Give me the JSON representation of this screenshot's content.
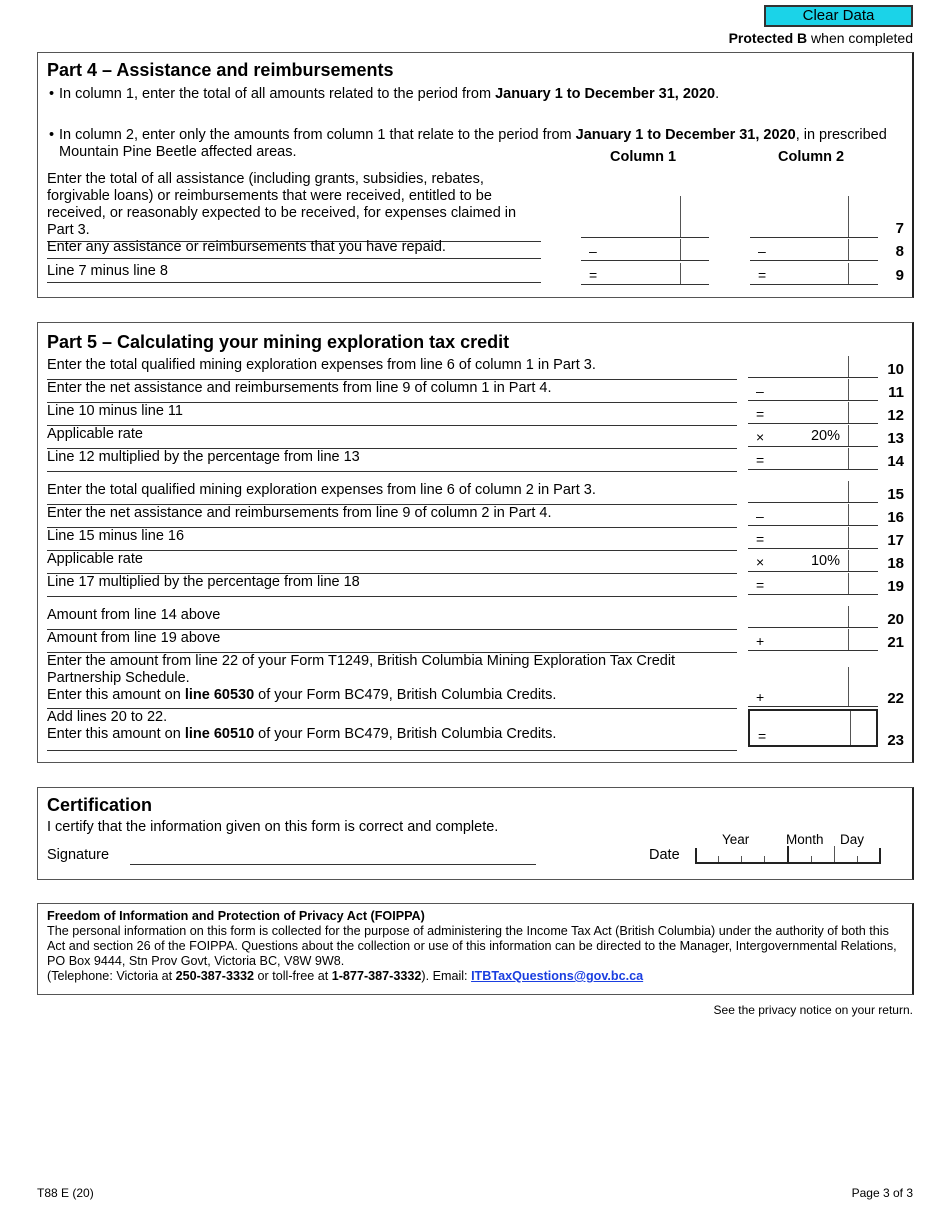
{
  "header": {
    "clear_button": "Clear Data",
    "protected_bold": "Protected B",
    "protected_rest": " when completed"
  },
  "part4": {
    "title": "Part 4 – Assistance and reimbursements",
    "bullet1_pre": "In column 1, enter the total of all amounts related to the period from ",
    "bullet1_bold": "January 1 to December 31, 2020",
    "bullet1_post": ".",
    "bullet2_pre": "In column 2, enter only the amounts from column 1 that relate to the period from ",
    "bullet2_bold": "January 1 to December 31, 2020",
    "bullet2_post": ", in prescribed Mountain Pine Beetle affected areas.",
    "col1": "Column 1",
    "col2": "Column 2",
    "rows": [
      {
        "text": "Enter the total of all assistance (including grants, subsidies, rebates, forgivable loans) or reimbursements that were received, entitled to be received, or reasonably expected to be received, for expenses claimed in Part 3.",
        "sym": "",
        "line": "7"
      },
      {
        "text": "Enter any assistance or reimbursements that you have repaid.",
        "sym": "–",
        "line": "8"
      },
      {
        "text": "Line 7 minus line 8",
        "sym": "=",
        "line": "9"
      }
    ]
  },
  "part5": {
    "title": "Part 5 – Calculating your mining exploration tax credit",
    "rows": [
      {
        "text": "Enter the total qualified mining exploration expenses from line 6 of column 1 in Part 3.",
        "sym": "",
        "line": "10"
      },
      {
        "text": "Enter the net assistance and reimbursements from line 9 of column 1 in Part 4.",
        "sym": "–",
        "line": "11"
      },
      {
        "text": "Line 10 minus line 11",
        "sym": "=",
        "line": "12"
      },
      {
        "text": "Applicable rate",
        "sym": "×",
        "rate": "20%",
        "line": "13"
      },
      {
        "text": "Line 12 multiplied by the percentage from line 13",
        "sym": "=",
        "line": "14"
      },
      {
        "text": "Enter the total qualified mining exploration expenses from line 6 of column 2 in Part 3.",
        "sym": "",
        "line": "15",
        "gap": true
      },
      {
        "text": "Enter the net assistance and reimbursements from line 9 of column 2 in Part 4.",
        "sym": "–",
        "line": "16"
      },
      {
        "text": "Line 15 minus line 16",
        "sym": "=",
        "line": "17"
      },
      {
        "text": "Applicable rate",
        "sym": "×",
        "rate": "10%",
        "line": "18"
      },
      {
        "text": "Line 17 multiplied by the percentage from line 18",
        "sym": "=",
        "line": "19"
      },
      {
        "text": "Amount from line 14 above",
        "sym": "",
        "line": "20",
        "gap": true
      },
      {
        "text": "Amount from line 19 above",
        "sym": "+",
        "line": "21"
      },
      {
        "text": "Enter the amount from line 22 of your Form T1249, British Columbia Mining Exploration Tax Credit Partnership Schedule.",
        "text2_pre": "Enter this amount on ",
        "text2_bold": "line 60530",
        "text2_post": " of your Form BC479, British Columbia Credits.",
        "sym": "+",
        "line": "22"
      },
      {
        "text": "Add lines 20 to 22.",
        "text2_pre": "Enter this amount on ",
        "text2_bold": "line 60510",
        "text2_post": " of your Form BC479, British Columbia Credits.",
        "sym": "=",
        "line": "23",
        "boxed": true
      }
    ]
  },
  "cert": {
    "title": "Certification",
    "statement": "I certify that the information given on this form is correct and complete.",
    "signature": "Signature",
    "date": "Date",
    "year": "Year",
    "month": "Month",
    "day": "Day"
  },
  "foippa": {
    "title": "Freedom of Information and Protection of Privacy Act (FOIPPA)",
    "body": "The personal information on this form is collected for the purpose of administering the Income Tax Act (British Columbia) under the authority of both this Act and section 26 of the FOIPPA. Questions about the collection or use of this information can be directed to the Manager, Intergovernmental Relations, PO Box 9444, Stn Prov Govt, Victoria BC,  V8W 9W8.",
    "tel_pre": "(Telephone: Victoria at ",
    "tel1": "250-387-3332",
    "tel_mid": " or toll-free at ",
    "tel2": "1-877-387-3332",
    "tel_post": "). Email: ",
    "email": "ITBTaxQuestions@gov.bc.ca"
  },
  "privacy": "See the privacy notice on your return.",
  "footer": {
    "form": "T88 E (20)",
    "page": "Page 3 of 3"
  }
}
